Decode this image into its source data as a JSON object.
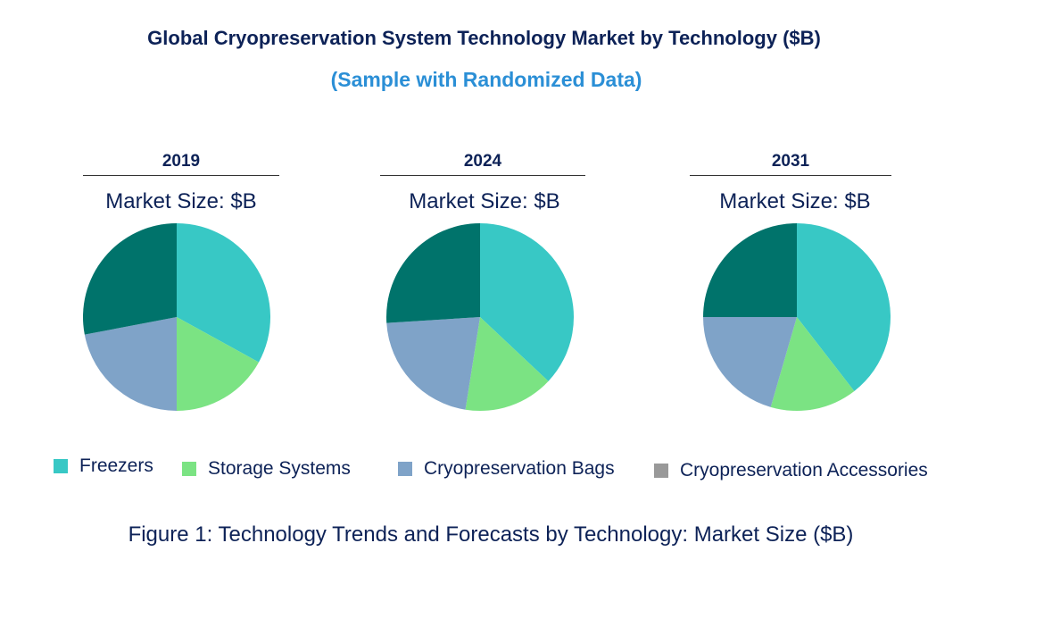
{
  "chart_data": {
    "type": "pie",
    "title": "Global Cryopreservation System Technology Market by Technology ($B)",
    "subtitle": "(Sample with Randomized Data)",
    "categories": [
      "Freezers",
      "Storage Systems",
      "Cryopreservation Bags",
      "Cryopreservation Accessories"
    ],
    "colors": [
      "#38c8c5",
      "#7be383",
      "#7fa3c8",
      "#00736b"
    ],
    "legend_colors": [
      "#38c8c5",
      "#7be383",
      "#7fa3c8",
      "#999999"
    ],
    "legend_position": "bottom",
    "pies": [
      {
        "year": "2019",
        "label": "Market Size: $B",
        "values": [
          33,
          17,
          22,
          28
        ]
      },
      {
        "year": "2024",
        "label": "Market Size: $B",
        "values": [
          37,
          15.5,
          21.5,
          26
        ]
      },
      {
        "year": "2031",
        "label": "Market Size: $B",
        "values": [
          39.5,
          15,
          20.5,
          25
        ]
      }
    ],
    "caption": "Figure 1: Technology Trends and Forecasts by Technology: Market Size ($B)"
  }
}
